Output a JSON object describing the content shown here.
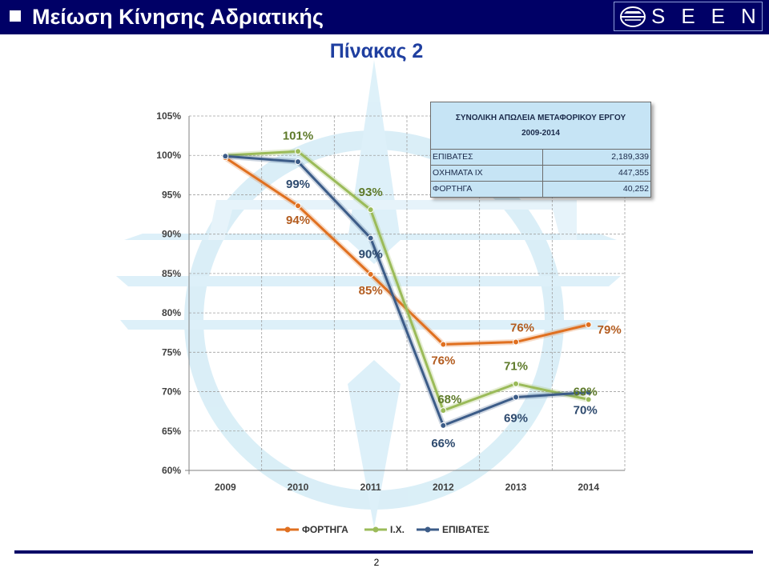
{
  "header": {
    "title": "Μείωση Κίνησης Αδριατικής",
    "logo_text": "SEEN",
    "bar_color": "#000066"
  },
  "subtitle": "Πίνακας 2",
  "summary_table": {
    "title_line1": "ΣΥΝΟΛΙΚΗ ΑΠΩΛΕΙΑ ΜΕΤΑΦΟΡΙΚΟΥ ΕΡΓΟΥ",
    "title_line2": "2009-2014",
    "rows": [
      {
        "label": "ΕΠΙΒΑΤΕΣ",
        "value": "2,189,339"
      },
      {
        "label": "ΟΧΗΜΑΤΑ ΙΧ",
        "value": "447,355"
      },
      {
        "label": "ΦΟΡΤΗΓΑ",
        "value": "40,252"
      }
    ]
  },
  "chart_data": {
    "type": "line",
    "categories": [
      "2009",
      "2010",
      "2011",
      "2012",
      "2013",
      "2014"
    ],
    "ylim": [
      60,
      105
    ],
    "yticks": [
      60,
      65,
      70,
      75,
      80,
      85,
      90,
      95,
      100,
      105
    ],
    "ytick_labels": [
      "60%",
      "65%",
      "70%",
      "75%",
      "80%",
      "85%",
      "90%",
      "95%",
      "100%",
      "105%"
    ],
    "grid": true,
    "legend_position": "bottom",
    "series": [
      {
        "name": "ΦΟΡΤΗΓΑ",
        "color": "#e07020",
        "label_color": "#b35c1f",
        "values": [
          99.7,
          93.6,
          84.9,
          76.0,
          76.3,
          78.5
        ],
        "labels": [
          "",
          "94%",
          "85%",
          "76%",
          "76%",
          "79%"
        ]
      },
      {
        "name": "Ι.Χ.",
        "color": "#9bbb59",
        "label_color": "#5e7a2a",
        "values": [
          100,
          100.5,
          93.1,
          67.6,
          71.0,
          69.0
        ],
        "labels": [
          "",
          "101%",
          "93%",
          "68%",
          "71%",
          "69%"
        ]
      },
      {
        "name": "ΕΠΙΒΑΤΕΣ",
        "color": "#3c5c88",
        "label_color": "#2e4a6e",
        "values": [
          99.9,
          99.2,
          89.5,
          65.7,
          69.3,
          69.9
        ],
        "labels": [
          "",
          "99%",
          "90%",
          "66%",
          "69%",
          "70%"
        ]
      }
    ]
  },
  "page_number": "2",
  "icons": {
    "logo": "ship-wheel-emblem-icon",
    "watermark": "compass-watermark-icon",
    "bullet": "square-bullet-icon"
  }
}
